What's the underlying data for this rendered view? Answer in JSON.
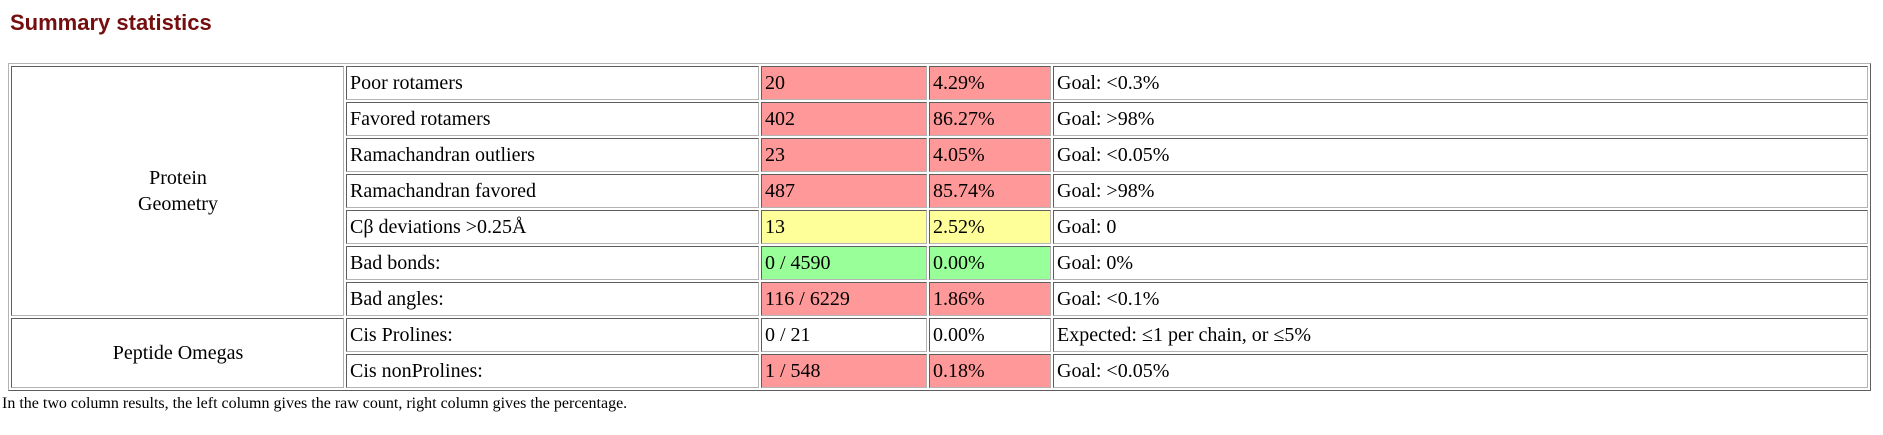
{
  "title": "Summary statistics",
  "footnote": "In the two column results, the left column gives the raw count, right column gives the percentage.",
  "colors": {
    "heading": "#750e0e",
    "flag_bad": "#ff9999",
    "flag_warning": "#ffff99",
    "flag_good": "#99ff99"
  },
  "table": {
    "groups": [
      {
        "line1": "Protein",
        "line2": "Geometry"
      },
      {
        "label": "Peptide Omegas"
      }
    ],
    "rows": [
      {
        "metric": "Poor rotamers",
        "count": "20",
        "percent": "4.29%",
        "goal": "Goal: <0.3%",
        "status": "bad"
      },
      {
        "metric": "Favored rotamers",
        "count": "402",
        "percent": "86.27%",
        "goal": "Goal: >98%",
        "status": "bad"
      },
      {
        "metric": "Ramachandran outliers",
        "count": "23",
        "percent": "4.05%",
        "goal": "Goal: <0.05%",
        "status": "bad"
      },
      {
        "metric": "Ramachandran favored",
        "count": "487",
        "percent": "85.74%",
        "goal": "Goal: >98%",
        "status": "bad"
      },
      {
        "metric": "Cβ deviations >0.25Å",
        "count": "13",
        "percent": "2.52%",
        "goal": "Goal: 0",
        "status": "warn"
      },
      {
        "metric": "Bad bonds:",
        "count": "0 / 4590",
        "percent": "0.00%",
        "goal": "Goal: 0%",
        "status": "good"
      },
      {
        "metric": "Bad angles:",
        "count": "116 / 6229",
        "percent": "1.86%",
        "goal": "Goal: <0.1%",
        "status": "bad"
      },
      {
        "metric": "Cis Prolines:",
        "count": "0 / 21",
        "percent": "0.00%",
        "goal": "Expected: ≤1 per chain, or ≤5%",
        "status": "none"
      },
      {
        "metric": "Cis nonProlines:",
        "count": "1 / 548",
        "percent": "0.18%",
        "goal": "Goal: <0.05%",
        "status": "bad"
      }
    ]
  }
}
